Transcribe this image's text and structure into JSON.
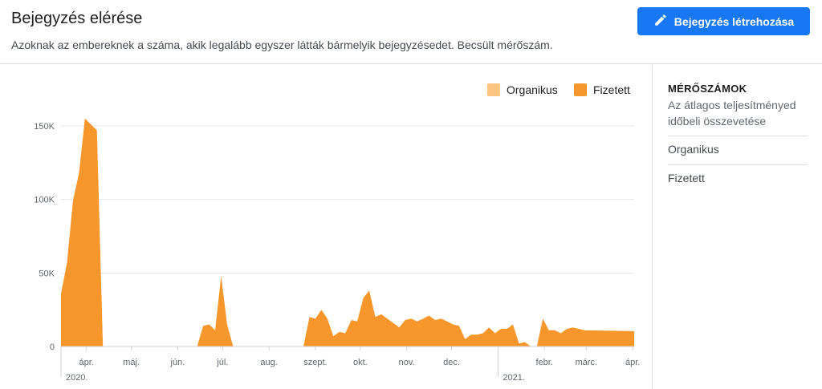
{
  "header": {
    "title": "Bejegyzés elérése",
    "subtitle": "Azoknak az embereknek a száma, akik legalább egyszer látták bármelyik bejegyzésedet. Becsült mérőszám.",
    "create_button": "Bejegyzés létrehozása"
  },
  "side": {
    "heading": "MÉRŐSZÁMOK",
    "description": "Az átlagos teljesítményed időbeli összevetése",
    "items": [
      "Organikus",
      "Fizetett"
    ]
  },
  "colors": {
    "organic": "#fcc481",
    "paid": "#f7962a",
    "accent": "#1877f2"
  },
  "chart_data": {
    "type": "area",
    "legend": [
      "Organikus",
      "Fizetett"
    ],
    "legend_position": "top-right",
    "ylim": [
      0,
      150000
    ],
    "yticks": [
      0,
      50000,
      100000,
      150000
    ],
    "ytick_labels": [
      "0",
      "50K",
      "100K",
      "150K"
    ],
    "xticks": [
      {
        "x": "2020-04-01",
        "label": "ápr."
      },
      {
        "x": "2020-05-01",
        "label": "máj."
      },
      {
        "x": "2020-06-01",
        "label": "jún."
      },
      {
        "x": "2020-07-01",
        "label": "júl."
      },
      {
        "x": "2020-08-01",
        "label": "aug."
      },
      {
        "x": "2020-09-01",
        "label": "szept."
      },
      {
        "x": "2020-10-01",
        "label": "okt."
      },
      {
        "x": "2020-11-01",
        "label": "nov."
      },
      {
        "x": "2020-12-01",
        "label": "dec."
      },
      {
        "x": "2021-02-01",
        "label": "febr."
      },
      {
        "x": "2021-03-01",
        "label": "márc."
      },
      {
        "x": "2021-04-01",
        "label": "ápr."
      }
    ],
    "year_labels": [
      {
        "x": "2020-03-15",
        "label": "2020."
      },
      {
        "x": "2021-01-01",
        "label": "2021."
      }
    ],
    "xlim": [
      "2020-03-15",
      "2021-04-02"
    ],
    "grid": true,
    "series": [
      {
        "name": "Organikus",
        "values": [],
        "x": []
      },
      {
        "name": "Fizetett",
        "x": [
          "2020-03-15",
          "2020-03-19",
          "2020-03-23",
          "2020-03-27",
          "2020-03-31",
          "2020-04-04",
          "2020-04-08",
          "2020-04-12",
          "2020-04-16",
          "2020-04-20",
          "2020-05-15",
          "2020-06-10",
          "2020-06-14",
          "2020-06-18",
          "2020-06-22",
          "2020-06-26",
          "2020-06-30",
          "2020-07-04",
          "2020-07-08",
          "2020-07-12",
          "2020-07-16",
          "2020-07-20",
          "2020-08-15",
          "2020-08-24",
          "2020-08-28",
          "2020-09-01",
          "2020-09-05",
          "2020-09-09",
          "2020-09-13",
          "2020-09-17",
          "2020-09-21",
          "2020-09-25",
          "2020-09-29",
          "2020-10-03",
          "2020-10-07",
          "2020-10-11",
          "2020-10-15",
          "2020-10-19",
          "2020-10-23",
          "2020-10-27",
          "2020-10-31",
          "2020-11-04",
          "2020-11-08",
          "2020-11-12",
          "2020-11-16",
          "2020-11-20",
          "2020-11-24",
          "2020-11-28",
          "2020-12-02",
          "2020-12-06",
          "2020-12-10",
          "2020-12-14",
          "2020-12-18",
          "2020-12-22",
          "2020-12-26",
          "2020-12-30",
          "2021-01-03",
          "2021-01-07",
          "2021-01-11",
          "2021-01-15",
          "2021-01-19",
          "2021-01-23",
          "2021-01-27",
          "2021-01-31",
          "2021-02-04",
          "2021-02-08",
          "2021-02-12",
          "2021-02-16",
          "2021-02-20",
          "2021-02-24",
          "2021-02-28",
          "2021-03-04",
          "2021-03-08",
          "2021-03-12",
          "2021-03-16",
          "2021-03-20",
          "2021-03-24",
          "2021-03-28",
          "2021-04-01"
        ],
        "values": [
          36000,
          57000,
          99000,
          118000,
          155000,
          151000,
          147000,
          0,
          0,
          0,
          0,
          0,
          0,
          14000,
          15000,
          11000,
          48000,
          15000,
          0,
          0,
          0,
          0,
          0,
          0,
          20000,
          19000,
          25000,
          19000,
          7000,
          10000,
          9000,
          18000,
          17000,
          33000,
          38000,
          20000,
          22000,
          19000,
          16000,
          13000,
          18000,
          19000,
          17000,
          19000,
          21000,
          18000,
          19000,
          17000,
          15000,
          14000,
          5000,
          8000,
          8000,
          9000,
          13000,
          9000,
          12000,
          12000,
          15000,
          2000,
          3000,
          0,
          0,
          19000,
          11000,
          11000,
          9000,
          12000,
          13000,
          12000,
          11000,
          null,
          null,
          null,
          null,
          null,
          null,
          null,
          null
        ]
      }
    ]
  }
}
